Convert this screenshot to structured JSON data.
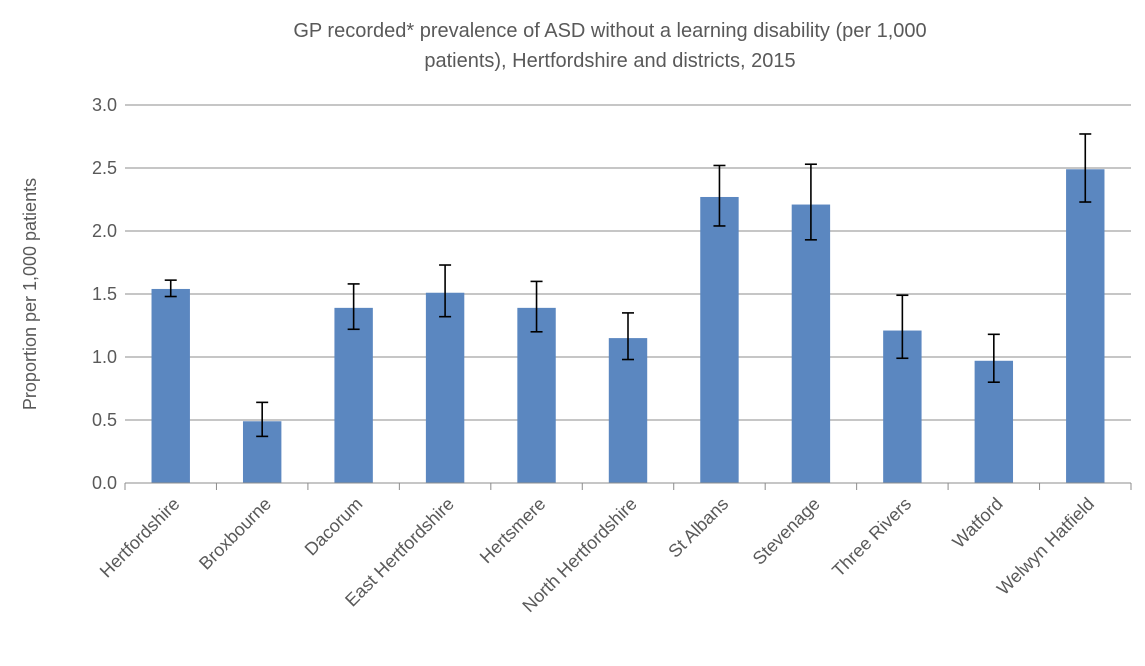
{
  "chart_data": {
    "type": "bar",
    "title_lines": [
      "GP recorded* prevalence of ASD without a learning disability (per 1,000",
      "patients), Hertfordshire and districts, 2015"
    ],
    "xlabel": "",
    "ylabel": "Proportion per 1,000 patients",
    "ylim": [
      0,
      3.0
    ],
    "y_ticks": [
      "0.0",
      "0.5",
      "1.0",
      "1.5",
      "2.0",
      "2.5",
      "3.0"
    ],
    "grid": true,
    "bar_color": "#5b87c0",
    "categories": [
      "Hertfordshire",
      "Broxbourne",
      "Dacorum",
      "East Hertfordshire",
      "Hertsmere",
      "North Hertfordshire",
      "St Albans",
      "Stevenage",
      "Three Rivers",
      "Watford",
      "Welwyn Hatfield"
    ],
    "values": [
      1.54,
      0.49,
      1.39,
      1.51,
      1.39,
      1.15,
      2.27,
      2.21,
      1.21,
      0.97,
      2.49
    ],
    "error_low": [
      1.48,
      0.37,
      1.22,
      1.32,
      1.2,
      0.98,
      2.04,
      1.93,
      0.99,
      0.8,
      2.23
    ],
    "error_high": [
      1.61,
      0.64,
      1.58,
      1.73,
      1.6,
      1.35,
      2.52,
      2.53,
      1.49,
      1.18,
      2.77
    ]
  }
}
